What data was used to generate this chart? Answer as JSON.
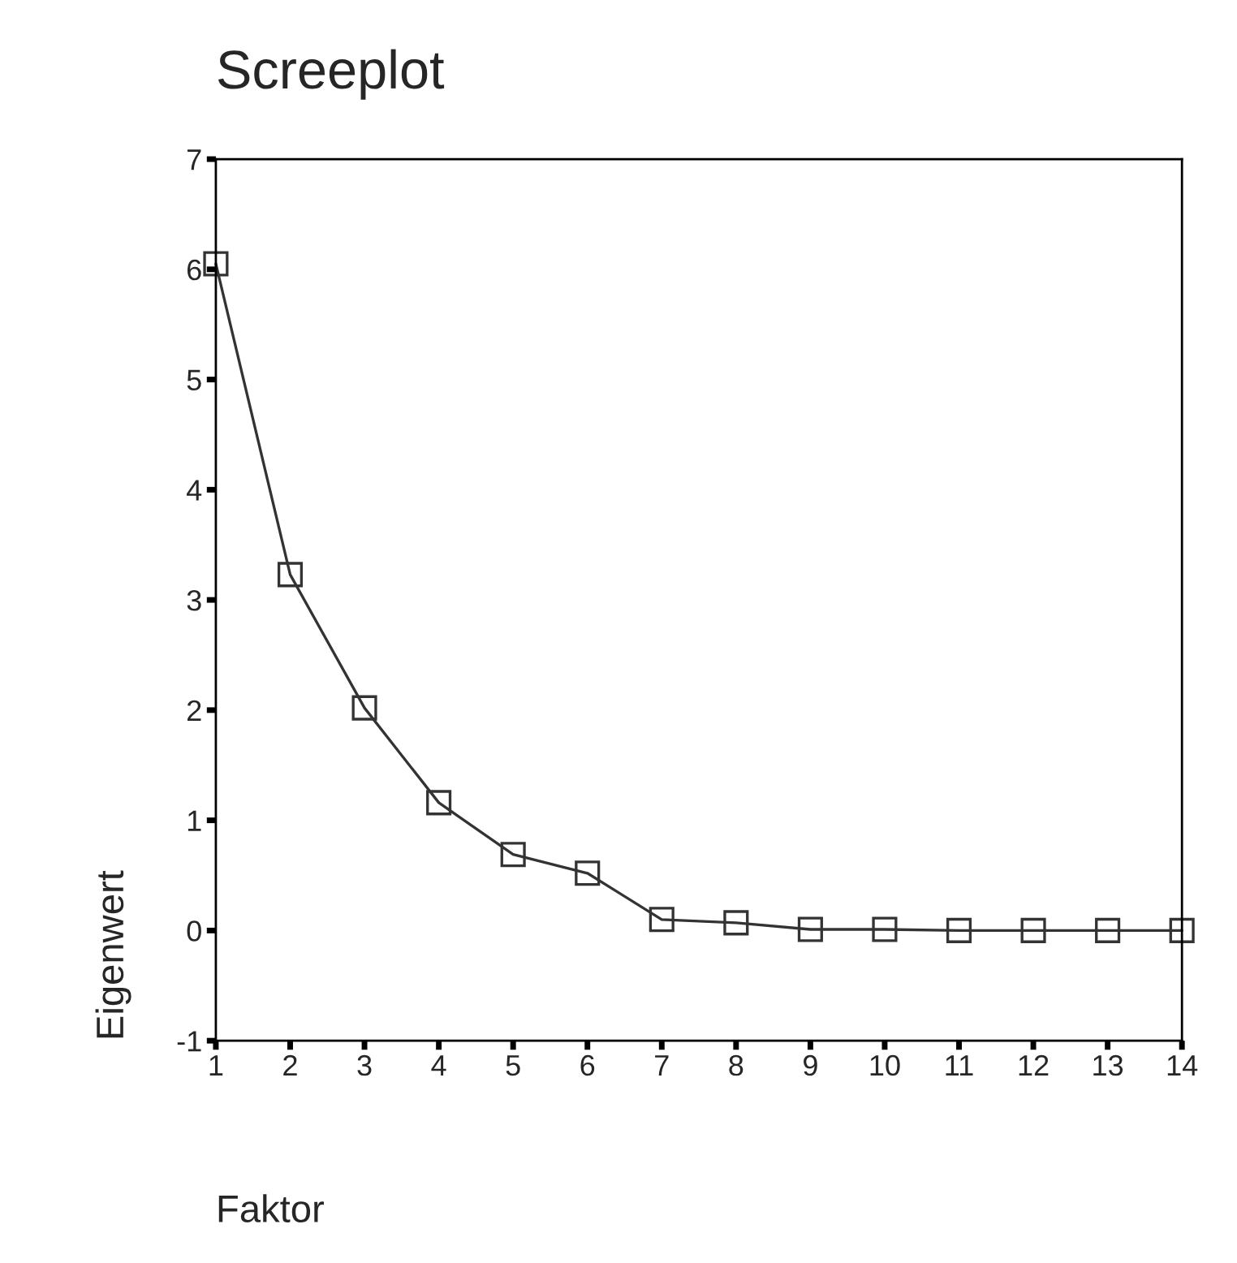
{
  "chart_data": {
    "type": "line",
    "title": "Screeplot",
    "xlabel": "Faktor",
    "ylabel": "Eigenwert",
    "x": [
      1,
      2,
      3,
      4,
      5,
      6,
      7,
      8,
      9,
      10,
      11,
      12,
      13,
      14
    ],
    "series": [
      {
        "color": "#333333",
        "values": [
          6.05,
          3.23,
          2.02,
          1.16,
          0.69,
          0.52,
          0.1,
          0.07,
          0.01,
          0.01,
          0,
          0,
          0,
          0
        ]
      }
    ],
    "xlim": [
      1,
      14
    ],
    "xticks": [
      1,
      2,
      3,
      4,
      5,
      6,
      7,
      8,
      9,
      10,
      11,
      12,
      13,
      14
    ],
    "ylim": [
      -1,
      7
    ],
    "yticks": [
      -1,
      0,
      1,
      2,
      3,
      4,
      5,
      6,
      7
    ],
    "marker": "square",
    "line_style": "solid",
    "grid": false
  }
}
